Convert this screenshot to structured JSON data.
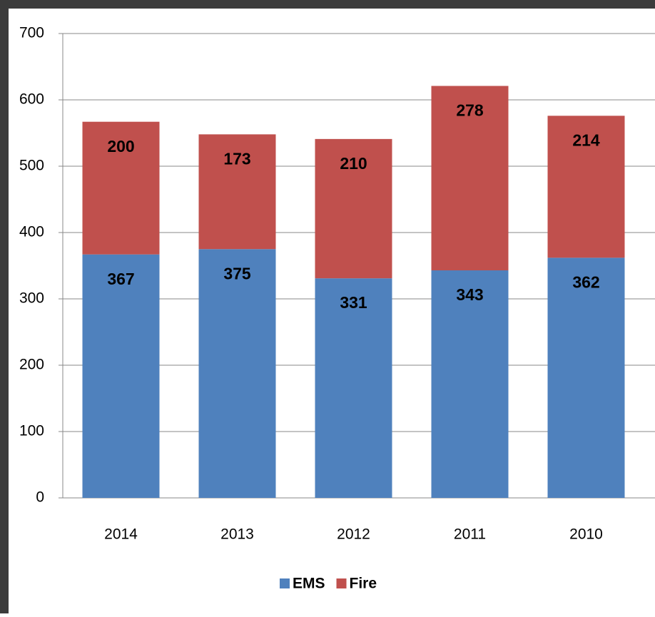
{
  "chart_data": {
    "type": "stacked_bar",
    "categories": [
      "2014",
      "2013",
      "2012",
      "2011",
      "2010"
    ],
    "series": [
      {
        "name": "EMS",
        "color": "#4f81bd",
        "values": [
          367,
          375,
          331,
          343,
          362
        ]
      },
      {
        "name": "Fire",
        "color": "#c0504d",
        "values": [
          200,
          173,
          210,
          278,
          214
        ]
      }
    ],
    "ylim": [
      0,
      700
    ],
    "yticks": [
      0,
      100,
      200,
      300,
      400,
      500,
      600,
      700
    ],
    "grid": true,
    "legend": "bottom"
  }
}
